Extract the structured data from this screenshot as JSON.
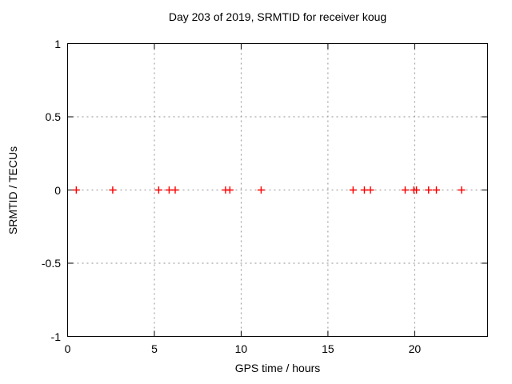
{
  "chart_data": {
    "type": "scatter",
    "title": "Day 203 of 2019, SRMTID for receiver koug",
    "xlabel": "GPS time / hours",
    "ylabel": "SRMTID / TECUs",
    "xlim": [
      0,
      24.2
    ],
    "ylim": [
      -1,
      1
    ],
    "xticks": {
      "values": [
        0,
        5,
        10,
        15,
        20
      ],
      "labels": [
        "0",
        "5",
        "10",
        "15",
        "20"
      ]
    },
    "yticks": {
      "values": [
        1,
        0.5,
        0,
        -0.5,
        -1
      ],
      "labels": [
        "1",
        "0.5",
        "0",
        "-0.5",
        "-1"
      ]
    },
    "grid": true,
    "legend": "none",
    "series": [
      {
        "name": "SRMTID",
        "marker": "plus",
        "x": [
          0.5,
          2.6,
          5.25,
          5.85,
          6.2,
          9.1,
          9.35,
          11.15,
          16.45,
          17.1,
          17.45,
          19.45,
          19.95,
          20.1,
          20.8,
          21.25,
          22.7
        ],
        "y": [
          0,
          0,
          0,
          0,
          0,
          0,
          0,
          0,
          0,
          0,
          0,
          0,
          0,
          0,
          0,
          0,
          0
        ]
      }
    ],
    "colors": {
      "marker": "#ff0000",
      "grid": "#909090",
      "border": "#000000",
      "background": "#ffffff",
      "text": "#000000"
    }
  }
}
